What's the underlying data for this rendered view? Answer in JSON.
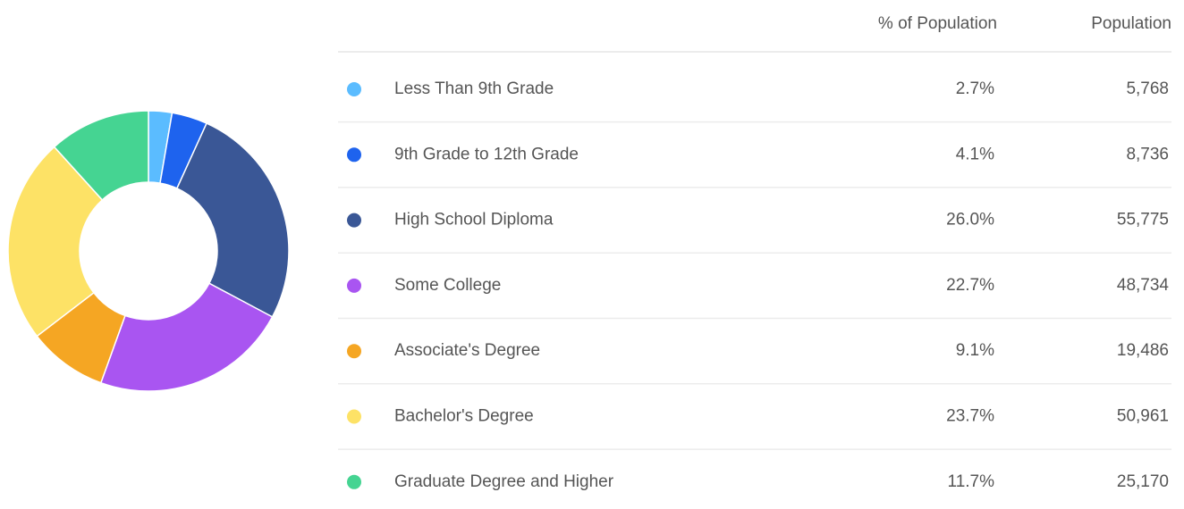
{
  "chart_data": {
    "type": "donut",
    "columns": [
      "% of Population",
      "Population"
    ],
    "categories": [
      "Less Than 9th Grade",
      "9th Grade to 12th Grade",
      "High School Diploma",
      "Some College",
      "Associate's Degree",
      "Bachelor's Degree",
      "Graduate Degree and Higher"
    ],
    "values": [
      2.7,
      4.1,
      26.0,
      22.7,
      9.1,
      23.7,
      11.7
    ],
    "value_labels": [
      "2.7%",
      "4.1%",
      "26.0%",
      "22.7%",
      "9.1%",
      "23.7%",
      "11.7%"
    ],
    "population": [
      "5,768",
      "8,736",
      "55,775",
      "48,734",
      "19,486",
      "50,961",
      "25,170"
    ],
    "colors": [
      "#5bbcff",
      "#1e63ee",
      "#3a5796",
      "#a955f1",
      "#f5a623",
      "#fde266",
      "#45d492"
    ]
  }
}
